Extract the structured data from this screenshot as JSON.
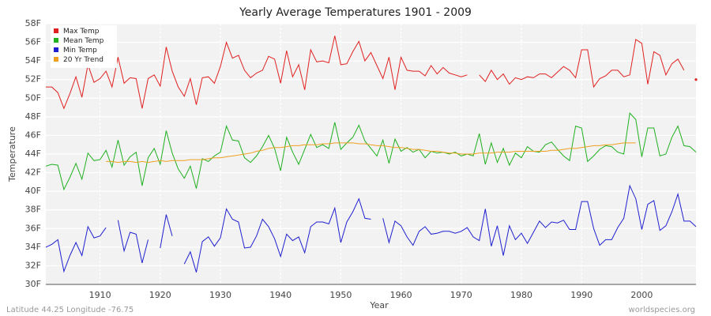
{
  "chart_data": {
    "type": "line",
    "title": "Yearly Average Temperatures 1901 - 2009",
    "x_label": "Year",
    "y_label": "Temperature",
    "footer_left": "Latitude 44.25 Longitude -76.75",
    "footer_right": "worldspecies.org",
    "legend": "upper left",
    "grid": true,
    "xlim": [
      1901,
      2009
    ],
    "xticks": [
      1910,
      1920,
      1930,
      1940,
      1950,
      1960,
      1970,
      1980,
      1990,
      2000
    ],
    "ylim": [
      30,
      58
    ],
    "yticks": [
      {
        "value": 30,
        "label": "30F"
      },
      {
        "value": 32,
        "label": "32F"
      },
      {
        "value": 34,
        "label": "34F"
      },
      {
        "value": 36,
        "label": "36F"
      },
      {
        "value": 38,
        "label": "38F"
      },
      {
        "value": 40,
        "label": "40F"
      },
      {
        "value": 42,
        "label": "42F"
      },
      {
        "value": 44,
        "label": "44F"
      },
      {
        "value": 46,
        "label": "46F"
      },
      {
        "value": 48,
        "label": "48F"
      },
      {
        "value": 50,
        "label": "50F"
      },
      {
        "value": 52,
        "label": "52F"
      },
      {
        "value": 54,
        "label": "54F"
      },
      {
        "value": 56,
        "label": "56F"
      },
      {
        "value": 58,
        "label": "58F"
      }
    ],
    "x": [
      1901,
      1902,
      1903,
      1904,
      1905,
      1906,
      1907,
      1908,
      1909,
      1910,
      1911,
      1912,
      1913,
      1914,
      1915,
      1916,
      1917,
      1918,
      1919,
      1920,
      1921,
      1922,
      1923,
      1924,
      1925,
      1926,
      1927,
      1928,
      1929,
      1930,
      1931,
      1932,
      1933,
      1934,
      1935,
      1936,
      1937,
      1938,
      1939,
      1940,
      1941,
      1942,
      1943,
      1944,
      1945,
      1946,
      1947,
      1948,
      1949,
      1950,
      1951,
      1952,
      1953,
      1954,
      1955,
      1956,
      1957,
      1958,
      1959,
      1960,
      1961,
      1962,
      1963,
      1964,
      1965,
      1966,
      1967,
      1968,
      1969,
      1970,
      1971,
      1972,
      1973,
      1974,
      1975,
      1976,
      1977,
      1978,
      1979,
      1980,
      1981,
      1982,
      1983,
      1984,
      1985,
      1986,
      1987,
      1988,
      1989,
      1990,
      1991,
      1992,
      1993,
      1994,
      1995,
      1996,
      1997,
      1998,
      1999,
      2000,
      2001,
      2002,
      2003,
      2004,
      2005,
      2006,
      2007,
      2008,
      2009
    ],
    "series": [
      {
        "name": "Max Temp",
        "color": "#e02020",
        "values": [
          51.2,
          51.2,
          50.6,
          48.9,
          50.5,
          52.3,
          50.1,
          53.6,
          51.7,
          52.1,
          52.9,
          51.2,
          54.4,
          51.6,
          52.2,
          52.1,
          48.9,
          52.1,
          52.5,
          51.3,
          55.5,
          52.9,
          51.2,
          50.2,
          52.1,
          49.3,
          52.2,
          52.3,
          51.6,
          53.4,
          56.0,
          54.3,
          54.6,
          53.0,
          52.2,
          52.7,
          53.0,
          54.5,
          54.2,
          51.6,
          55.1,
          52.3,
          53.6,
          50.9,
          55.2,
          53.9,
          54.0,
          53.8,
          56.7,
          53.6,
          53.7,
          55.0,
          56.1,
          54.0,
          54.9,
          53.5,
          52.1,
          54.4,
          50.9,
          54.4,
          53.0,
          52.9,
          52.9,
          52.4,
          53.5,
          52.6,
          53.3,
          52.7,
          52.5,
          52.3,
          52.5,
          null,
          52.5,
          51.8,
          53.0,
          52.0,
          52.6,
          51.5,
          52.2,
          52.0,
          52.3,
          52.2,
          52.6,
          52.6,
          52.2,
          52.8,
          53.4,
          53.0,
          52.2,
          55.2,
          55.2,
          51.2,
          52.1,
          52.4,
          53.0,
          53.0,
          52.3,
          52.5,
          56.3,
          55.9,
          51.5,
          55.0,
          54.6,
          52.5,
          53.7,
          54.2,
          53.0,
          null,
          52.0
        ]
      },
      {
        "name": "Mean Temp",
        "color": "#20b020",
        "values": [
          42.7,
          42.9,
          42.8,
          40.2,
          41.5,
          43.0,
          41.3,
          44.1,
          43.3,
          43.4,
          44.4,
          42.6,
          45.5,
          42.8,
          43.7,
          44.2,
          40.6,
          43.6,
          44.6,
          42.9,
          46.5,
          44.1,
          42.4,
          41.4,
          42.7,
          40.3,
          43.5,
          43.2,
          43.8,
          44.2,
          47.0,
          45.5,
          45.4,
          43.6,
          43.1,
          43.8,
          44.8,
          46.0,
          44.6,
          42.2,
          45.8,
          44.2,
          42.9,
          44.5,
          46.1,
          44.7,
          45.0,
          44.6,
          47.4,
          44.5,
          45.2,
          45.8,
          47.1,
          45.4,
          44.6,
          43.8,
          45.5,
          43.0,
          45.6,
          44.3,
          44.7,
          44.2,
          44.5,
          43.6,
          44.3,
          44.1,
          44.2,
          44.0,
          44.2,
          43.8,
          44.0,
          43.8,
          46.2,
          42.9,
          45.2,
          43.1,
          44.6,
          42.8,
          44.1,
          43.6,
          44.8,
          44.3,
          44.2,
          45.0,
          45.3,
          44.5,
          43.8,
          43.3,
          47.0,
          46.8,
          43.2,
          43.8,
          44.5,
          44.9,
          44.8,
          44.2,
          44.0,
          48.4,
          47.7,
          43.7,
          46.8,
          46.8,
          43.8,
          44.0,
          45.8,
          47.0,
          44.9,
          44.8,
          44.2
        ]
      },
      {
        "name": "Min Temp",
        "color": "#2020d0",
        "values": [
          34.0,
          34.3,
          34.8,
          31.4,
          33.1,
          34.5,
          33.1,
          36.2,
          35.0,
          35.2,
          36.1,
          null,
          36.9,
          33.6,
          35.6,
          35.4,
          32.3,
          34.8,
          null,
          33.9,
          37.5,
          35.2,
          null,
          32.2,
          33.5,
          31.3,
          34.6,
          35.1,
          34.1,
          35.0,
          38.1,
          37.0,
          36.7,
          33.9,
          34.0,
          35.2,
          37.0,
          36.2,
          34.9,
          33.0,
          35.4,
          34.7,
          35.1,
          33.4,
          36.2,
          36.7,
          36.7,
          36.5,
          38.2,
          34.5,
          36.7,
          37.8,
          39.2,
          37.1,
          37.0,
          null,
          37.1,
          34.5,
          36.8,
          36.3,
          35.1,
          34.2,
          35.7,
          36.2,
          35.4,
          35.5,
          35.7,
          35.7,
          35.5,
          35.7,
          36.1,
          35.1,
          34.7,
          38.1,
          34.1,
          36.3,
          33.1,
          36.3,
          34.8,
          35.5,
          34.4,
          35.6,
          36.8,
          36.1,
          36.7,
          36.6,
          36.9,
          35.9,
          35.9,
          38.9,
          38.9,
          36.0,
          34.2,
          34.8,
          34.8,
          36.1,
          37.1,
          40.6,
          39.2,
          35.9,
          38.6,
          39.0,
          35.8,
          36.3,
          37.8,
          39.7,
          36.8,
          36.8,
          36.2
        ]
      },
      {
        "name": "20 Yr Trend",
        "color": "#f0a020",
        "values": [
          null,
          null,
          null,
          null,
          null,
          null,
          null,
          null,
          null,
          null,
          43.2,
          43.2,
          43.1,
          43.2,
          43.2,
          43.1,
          43.2,
          43.1,
          43.2,
          43.3,
          43.2,
          43.3,
          43.3,
          43.3,
          43.4,
          43.4,
          43.4,
          43.5,
          43.6,
          43.6,
          43.7,
          43.8,
          43.9,
          44.0,
          44.1,
          44.3,
          44.4,
          44.6,
          44.7,
          44.7,
          44.8,
          44.9,
          44.9,
          45.0,
          45.0,
          45.0,
          45.1,
          45.1,
          45.2,
          45.2,
          45.2,
          45.2,
          45.1,
          45.1,
          45.0,
          44.9,
          44.9,
          44.8,
          44.7,
          44.7,
          44.6,
          44.5,
          44.5,
          44.4,
          44.3,
          44.3,
          44.2,
          44.1,
          44.1,
          44.0,
          44.0,
          44.0,
          44.1,
          44.1,
          44.1,
          44.2,
          44.2,
          44.2,
          44.3,
          44.3,
          44.3,
          44.3,
          44.3,
          44.3,
          44.4,
          44.4,
          44.5,
          44.6,
          44.6,
          44.7,
          44.8,
          44.9,
          44.9,
          45.0,
          45.0,
          45.1,
          45.2,
          45.2,
          45.2,
          null,
          null,
          null,
          null,
          null,
          null,
          null,
          null,
          null,
          null
        ]
      }
    ]
  }
}
